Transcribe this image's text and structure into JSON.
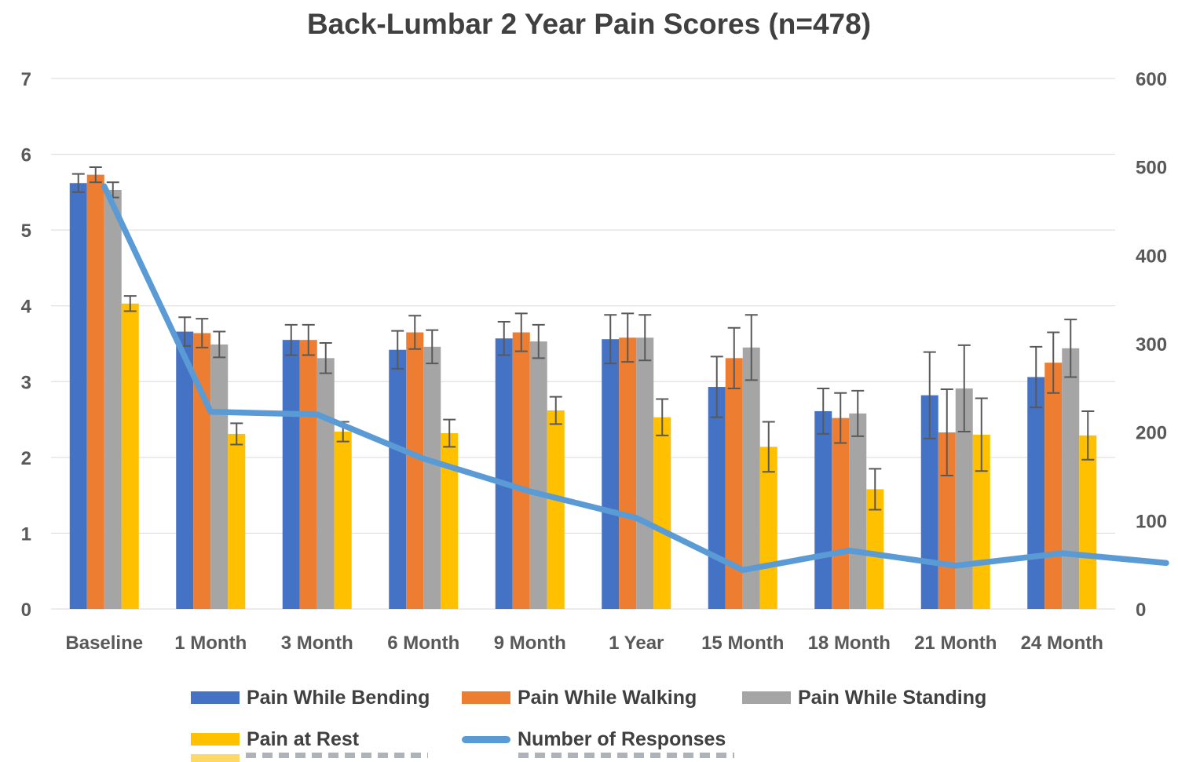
{
  "page": {
    "background": "#FFFFFF"
  },
  "chart_data": {
    "type": "bar",
    "subtype": "combo-bar-line-with-error-bars",
    "title": "Back-Lumbar 2 Year Pain Scores (n=478)",
    "categories": [
      "Baseline",
      "1 Month",
      "3 Month",
      "6 Month",
      "9 Month",
      "1 Year",
      "15 Month",
      "18 Month",
      "21 Month",
      "24 Month"
    ],
    "xlabel": "",
    "ylabel": "",
    "grid": true,
    "legend_position": "bottom",
    "left_axis": {
      "min": 0,
      "max": 7,
      "ticks": [
        0,
        1,
        2,
        3,
        4,
        5,
        6,
        7
      ]
    },
    "right_axis": {
      "min": 0,
      "max": 600,
      "ticks": [
        0,
        100,
        200,
        300,
        400,
        500,
        600
      ]
    },
    "series": [
      {
        "name": "Pain While Bending",
        "type": "bar",
        "axis": "left",
        "color": "#4472C4",
        "values": [
          5.62,
          3.66,
          3.55,
          3.42,
          3.57,
          3.56,
          2.93,
          2.61,
          2.82,
          3.06
        ],
        "errors": [
          0.12,
          0.19,
          0.2,
          0.25,
          0.22,
          0.32,
          0.4,
          0.3,
          0.57,
          0.4
        ]
      },
      {
        "name": "Pain While Walking",
        "type": "bar",
        "axis": "left",
        "color": "#ED7D31",
        "values": [
          5.73,
          3.64,
          3.55,
          3.65,
          3.65,
          3.58,
          3.31,
          2.52,
          2.33,
          3.25
        ],
        "errors": [
          0.1,
          0.19,
          0.2,
          0.22,
          0.25,
          0.32,
          0.4,
          0.33,
          0.57,
          0.4
        ]
      },
      {
        "name": "Pain While Standing",
        "type": "bar",
        "axis": "left",
        "color": "#A5A5A5",
        "values": [
          5.53,
          3.49,
          3.31,
          3.46,
          3.53,
          3.58,
          3.45,
          2.58,
          2.91,
          3.44
        ],
        "errors": [
          0.1,
          0.17,
          0.2,
          0.22,
          0.22,
          0.3,
          0.43,
          0.3,
          0.57,
          0.38
        ]
      },
      {
        "name": "Pain at Rest",
        "type": "bar",
        "axis": "left",
        "color": "#FFC000",
        "values": [
          4.03,
          2.31,
          2.34,
          2.32,
          2.62,
          2.53,
          2.14,
          1.58,
          2.3,
          2.29
        ],
        "errors": [
          0.1,
          0.14,
          0.13,
          0.18,
          0.18,
          0.24,
          0.33,
          0.27,
          0.48,
          0.32
        ]
      },
      {
        "name": "Number of Responses",
        "type": "line",
        "axis": "right",
        "color": "#5B9BD5",
        "values": [
          478,
          223,
          220,
          170,
          133,
          103,
          44,
          66,
          49,
          63
        ],
        "tail_value": 52
      }
    ]
  },
  "legend": {
    "rows": [
      {
        "clipped": false,
        "items": [
          {
            "swatch": "bar",
            "color": "#4472C4",
            "label": "Pain While Bending"
          },
          {
            "swatch": "bar",
            "color": "#ED7D31",
            "label": "Pain While Walking"
          },
          {
            "swatch": "bar",
            "color": "#A5A5A5",
            "label": "Pain While Standing"
          }
        ]
      },
      {
        "clipped": false,
        "items": [
          {
            "swatch": "bar",
            "color": "#FFC000",
            "label": "Pain at Rest"
          },
          {
            "swatch": "line",
            "color": "#5B9BD5",
            "label": "Number of Responses"
          }
        ]
      },
      {
        "clipped": true,
        "items": [
          {
            "swatch": "bar",
            "color": "#FFD966",
            "label": ""
          },
          {
            "swatch": "none",
            "color": "",
            "label": ""
          }
        ]
      }
    ]
  },
  "styles": {
    "grid_color": "#D9D9D9",
    "axis_text_color": "#595959",
    "title_color": "#404040",
    "legend_text_color": "#404040",
    "error_bar_color": "#595959"
  }
}
